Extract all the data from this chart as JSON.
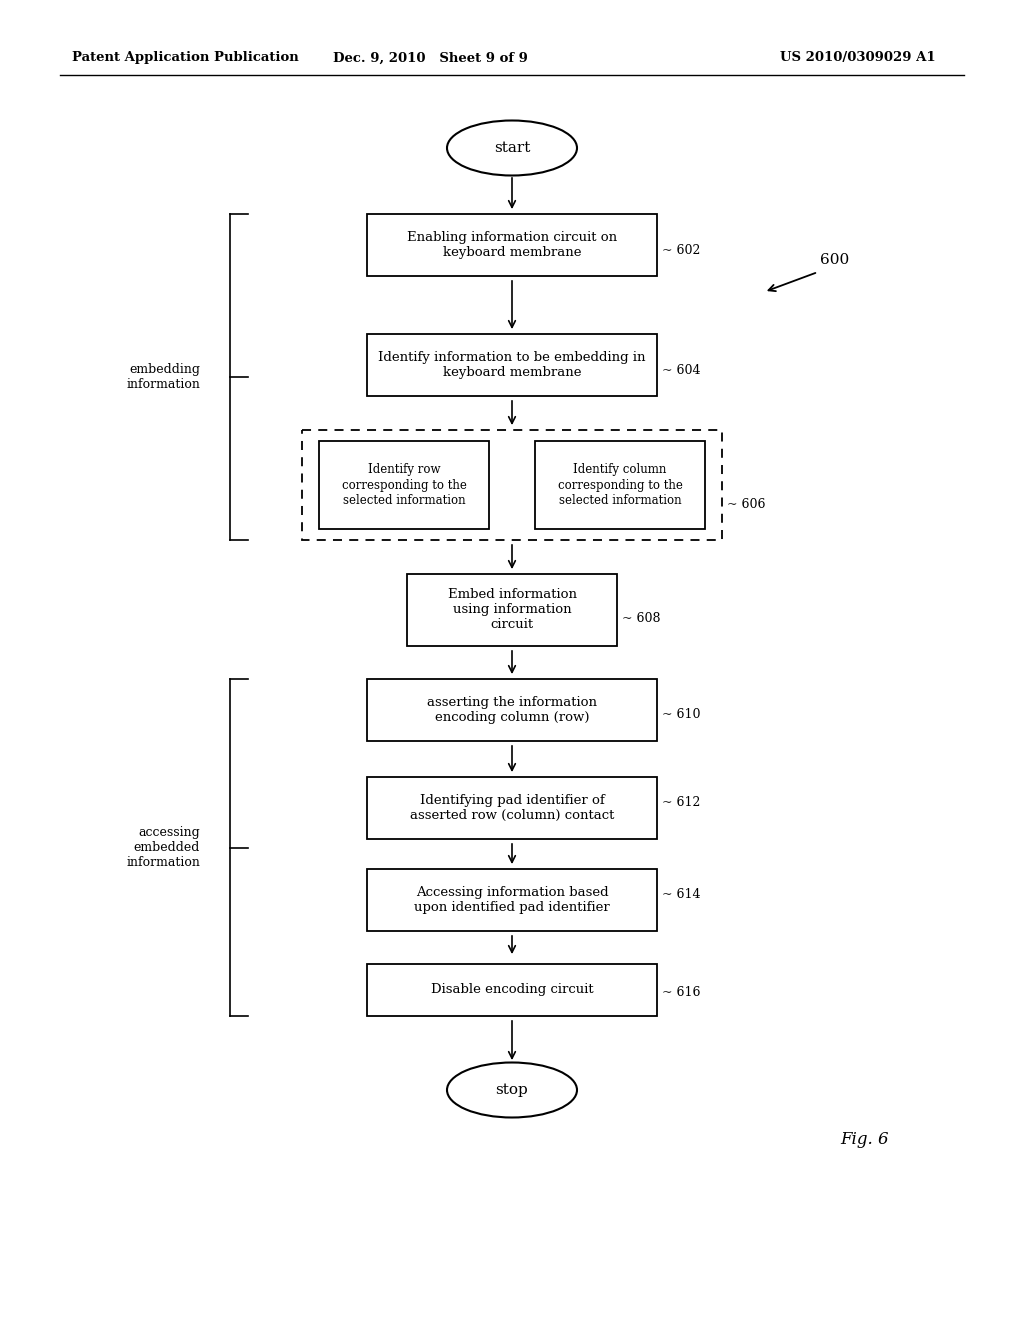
{
  "bg_color": "#ffffff",
  "header_left": "Patent Application Publication",
  "header_mid": "Dec. 9, 2010   Sheet 9 of 9",
  "header_right": "US 2010/0309029 A1",
  "fig_label": "Fig. 6",
  "start_label": "start",
  "stop_label": "stop",
  "box_602": "Enabling information circuit on\nkeyboard membrane",
  "box_604": "Identify information to be embedding in\nkeyboard membrane",
  "box_606L": "Identify row\ncorresponding to the\nselected information",
  "box_606R": "Identify column\ncorresponding to the\nselected information",
  "box_608": "Embed information\nusing information\ncircuit",
  "box_610": "asserting the information\nencoding column (row)",
  "box_612": "Identifying pad identifier of\nasserted row (column) contact",
  "box_614": "Accessing information based\nupon identified pad identifier",
  "box_616": "Disable encoding circuit",
  "embed_label": "embedding\ninformation",
  "access_label": "accessing\nembedded\ninformation"
}
